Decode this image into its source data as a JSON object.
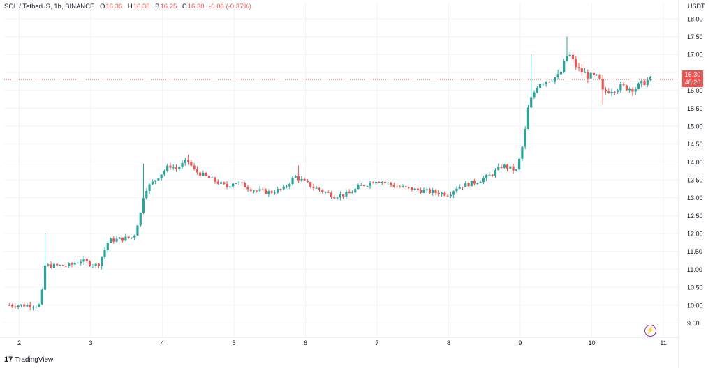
{
  "legend": {
    "symbol": "SOL / TetherUS, 1h, BINANCE",
    "o_label": "O",
    "o_value": "16.36",
    "h_label": "H",
    "h_value": "16.38",
    "b_label": "B",
    "b_value": "16.25",
    "c_label": "C",
    "c_value": "16.30",
    "change": "-0.06 (-0.37%)"
  },
  "price_tag": {
    "price": "16.30",
    "countdown": "48:26"
  },
  "brand": {
    "logo": "17",
    "name": "TradingView"
  },
  "icons": {
    "bolt": "lightning-icon",
    "logo": "tradingview-logo"
  },
  "colors": {
    "up": "#26a69a",
    "down": "#ef5350",
    "grid": "#f0f3fa",
    "text": "#131722"
  },
  "chart_data": {
    "type": "candlestick",
    "title": "SOL / TetherUS, 1h, BINANCE",
    "y_unit": "USDT",
    "ylim": [
      9.1,
      18.25
    ],
    "y_ticks": [
      "18.00",
      "17.50",
      "17.00",
      "16.50",
      "16.00",
      "15.50",
      "15.00",
      "14.50",
      "14.00",
      "13.50",
      "13.00",
      "12.50",
      "12.00",
      "11.50",
      "11.00",
      "10.50",
      "10.00",
      "9.50"
    ],
    "x_ticks": [
      "2",
      "3",
      "4",
      "5",
      "6",
      "7",
      "8",
      "9",
      "10",
      "11"
    ],
    "x_range_days": [
      1.8,
      11.6
    ],
    "grid": true,
    "current_price": 16.3,
    "anchors": [
      [
        1.82,
        10.0
      ],
      [
        2.3,
        10.0
      ],
      [
        2.36,
        11.1
      ],
      [
        2.7,
        11.1
      ],
      [
        2.85,
        11.25
      ],
      [
        3.1,
        11.1
      ],
      [
        3.25,
        11.8
      ],
      [
        3.6,
        11.9
      ],
      [
        3.7,
        12.6
      ],
      [
        3.75,
        13.2
      ],
      [
        3.95,
        13.6
      ],
      [
        4.1,
        13.9
      ],
      [
        4.2,
        13.8
      ],
      [
        4.35,
        14.05
      ],
      [
        4.45,
        13.75
      ],
      [
        4.7,
        13.5
      ],
      [
        4.9,
        13.3
      ],
      [
        5.0,
        13.45
      ],
      [
        5.3,
        13.2
      ],
      [
        5.5,
        13.15
      ],
      [
        5.7,
        13.25
      ],
      [
        5.85,
        13.6
      ],
      [
        6.1,
        13.3
      ],
      [
        6.4,
        13.05
      ],
      [
        6.6,
        13.1
      ],
      [
        6.75,
        13.3
      ],
      [
        7.0,
        13.5
      ],
      [
        7.3,
        13.3
      ],
      [
        7.6,
        13.2
      ],
      [
        8.0,
        13.1
      ],
      [
        8.12,
        13.3
      ],
      [
        8.4,
        13.45
      ],
      [
        8.6,
        13.65
      ],
      [
        8.75,
        13.9
      ],
      [
        8.95,
        13.75
      ],
      [
        9.05,
        14.6
      ],
      [
        9.12,
        15.6
      ],
      [
        9.25,
        16.2
      ],
      [
        9.4,
        16.3
      ],
      [
        9.55,
        16.4
      ],
      [
        9.67,
        17.05
      ],
      [
        9.8,
        16.6
      ],
      [
        9.95,
        16.4
      ],
      [
        10.1,
        16.35
      ],
      [
        10.15,
        15.95
      ],
      [
        10.4,
        16.1
      ],
      [
        10.6,
        16.05
      ],
      [
        10.75,
        16.25
      ],
      [
        10.82,
        16.3
      ]
    ],
    "notable_wicks": [
      {
        "day": 2.35,
        "high": 12.0
      },
      {
        "day": 3.72,
        "high": 13.95
      },
      {
        "day": 4.35,
        "high": 14.2
      },
      {
        "day": 5.9,
        "high": 13.9
      },
      {
        "day": 9.15,
        "high": 17.0
      },
      {
        "day": 9.67,
        "high": 17.5
      },
      {
        "day": 10.15,
        "low": 15.6
      }
    ]
  }
}
